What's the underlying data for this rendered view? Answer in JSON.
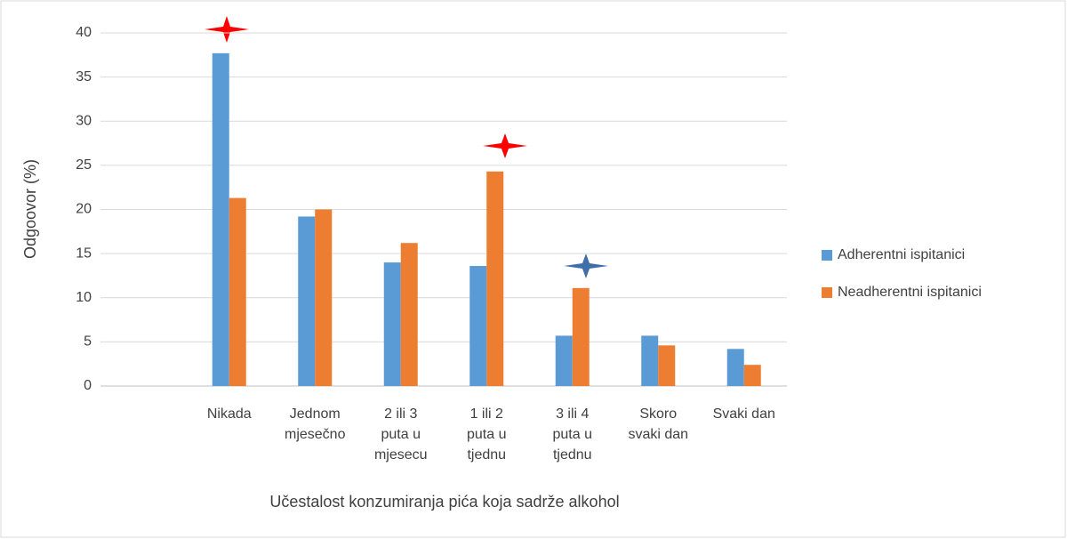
{
  "chart_data": {
    "type": "bar",
    "x_label": "Učestalost konzumiranja pića koja sadrže alkohol",
    "y_label": "Odgoovor (%)",
    "categories": [
      null,
      "Nikada",
      "Jednom mjesečno",
      "2 ili 3 puta u mjesecu",
      "1 ili 2 puta u tjednu",
      "3 ili 4 puta u tjednu",
      "Skoro svaki dan",
      "Svaki dan"
    ],
    "series": [
      {
        "name": "Adherentni ispitanici",
        "color": "#5b9bd5",
        "values": [
          null,
          37.7,
          19.2,
          14.0,
          13.6,
          5.7,
          5.7,
          4.2
        ]
      },
      {
        "name": "Neadherentni ispitanici",
        "color": "#ed7d31",
        "values": [
          null,
          21.3,
          20.0,
          16.2,
          24.3,
          11.1,
          4.6,
          2.4
        ]
      }
    ],
    "ylim": [
      0,
      40
    ],
    "yticks": [
      0,
      5,
      10,
      15,
      20,
      25,
      30,
      35,
      40
    ],
    "grid": true,
    "legend": "right"
  }
}
